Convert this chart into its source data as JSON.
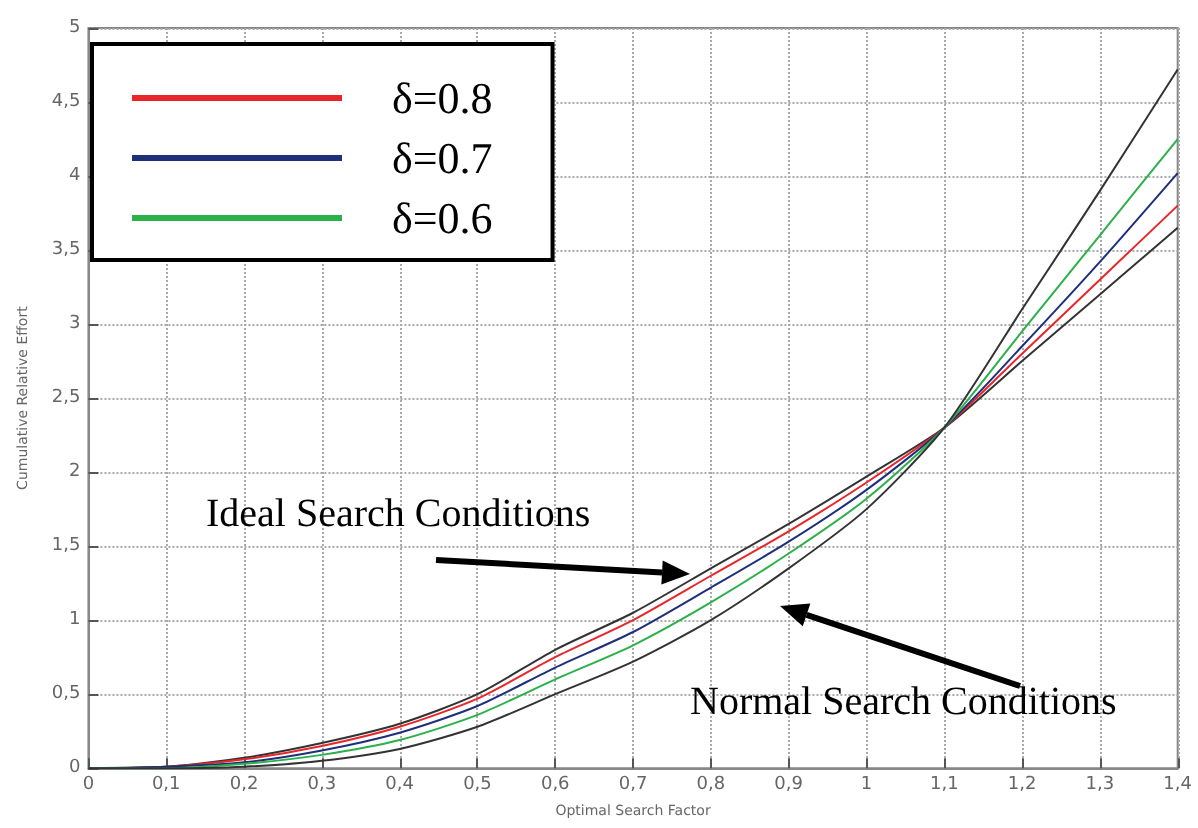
{
  "chart_data": {
    "type": "line",
    "xlabel": "Optimal Search Factor",
    "ylabel": "Cumulative Relative Effort",
    "x": [
      0,
      0.1,
      0.2,
      0.3,
      0.4,
      0.5,
      0.6,
      0.7,
      0.8,
      0.9,
      1.0,
      1.1,
      1.2,
      1.3,
      1.4
    ],
    "series": [
      {
        "color": "#333333",
        "values": [
          0,
          0.01,
          0.07,
          0.17,
          0.3,
          0.5,
          0.8,
          1.05,
          1.35,
          1.65,
          1.97,
          2.3,
          2.75,
          3.2,
          3.65
        ]
      },
      {
        "name": "δ=0.8",
        "color": "#e8262a",
        "values": [
          0,
          0.01,
          0.06,
          0.15,
          0.28,
          0.47,
          0.75,
          1.0,
          1.3,
          1.6,
          1.93,
          2.3,
          2.8,
          3.3,
          3.8
        ]
      },
      {
        "name": "δ=0.7",
        "color": "#1f2f7a",
        "values": [
          0,
          0.01,
          0.04,
          0.12,
          0.24,
          0.42,
          0.68,
          0.92,
          1.22,
          1.53,
          1.88,
          2.3,
          2.85,
          3.42,
          4.02
        ]
      },
      {
        "name": "δ=0.6",
        "color": "#2bb04a",
        "values": [
          0,
          0,
          0.03,
          0.09,
          0.19,
          0.36,
          0.6,
          0.83,
          1.12,
          1.45,
          1.82,
          2.3,
          2.95,
          3.6,
          4.25
        ]
      },
      {
        "color": "#333333",
        "values": [
          0,
          0,
          0.01,
          0.05,
          0.13,
          0.28,
          0.5,
          0.72,
          1.0,
          1.35,
          1.75,
          2.3,
          3.1,
          3.9,
          4.72
        ]
      }
    ],
    "xlim": [
      0,
      1.4
    ],
    "xticks": [
      0,
      {
        "value": 0.1,
        "label": "0,1"
      },
      {
        "value": 0.2,
        "label": "0,2"
      },
      {
        "value": 0.3,
        "label": "0,3"
      },
      {
        "value": 0.4,
        "label": "0,4"
      },
      {
        "value": 0.5,
        "label": "0,5"
      },
      {
        "value": 0.6,
        "label": "0,6"
      },
      {
        "value": 0.7,
        "label": "0,7"
      },
      {
        "value": 0.8,
        "label": "0,8"
      },
      {
        "value": 0.9,
        "label": "0,9"
      },
      1,
      {
        "value": 1.1,
        "label": "1,1"
      },
      {
        "value": 1.2,
        "label": "1,2"
      },
      {
        "value": 1.3,
        "label": "1,3"
      },
      {
        "value": 1.4,
        "label": "1,4"
      }
    ],
    "ylim": [
      0,
      5
    ],
    "yticks": [
      0,
      {
        "value": 0.5,
        "label": "0,5"
      },
      1,
      {
        "value": 1.5,
        "label": "1,5"
      },
      2,
      {
        "value": 2.5,
        "label": "2,5"
      },
      3,
      {
        "value": 3.5,
        "label": "3,5"
      },
      4,
      {
        "value": 4.5,
        "label": "4,5"
      },
      5
    ],
    "annotations": [
      "Ideal Search Conditions",
      "Normal Search Conditions"
    ],
    "grid": true,
    "legend": "top left",
    "marker": "none",
    "line_style": "solid"
  }
}
